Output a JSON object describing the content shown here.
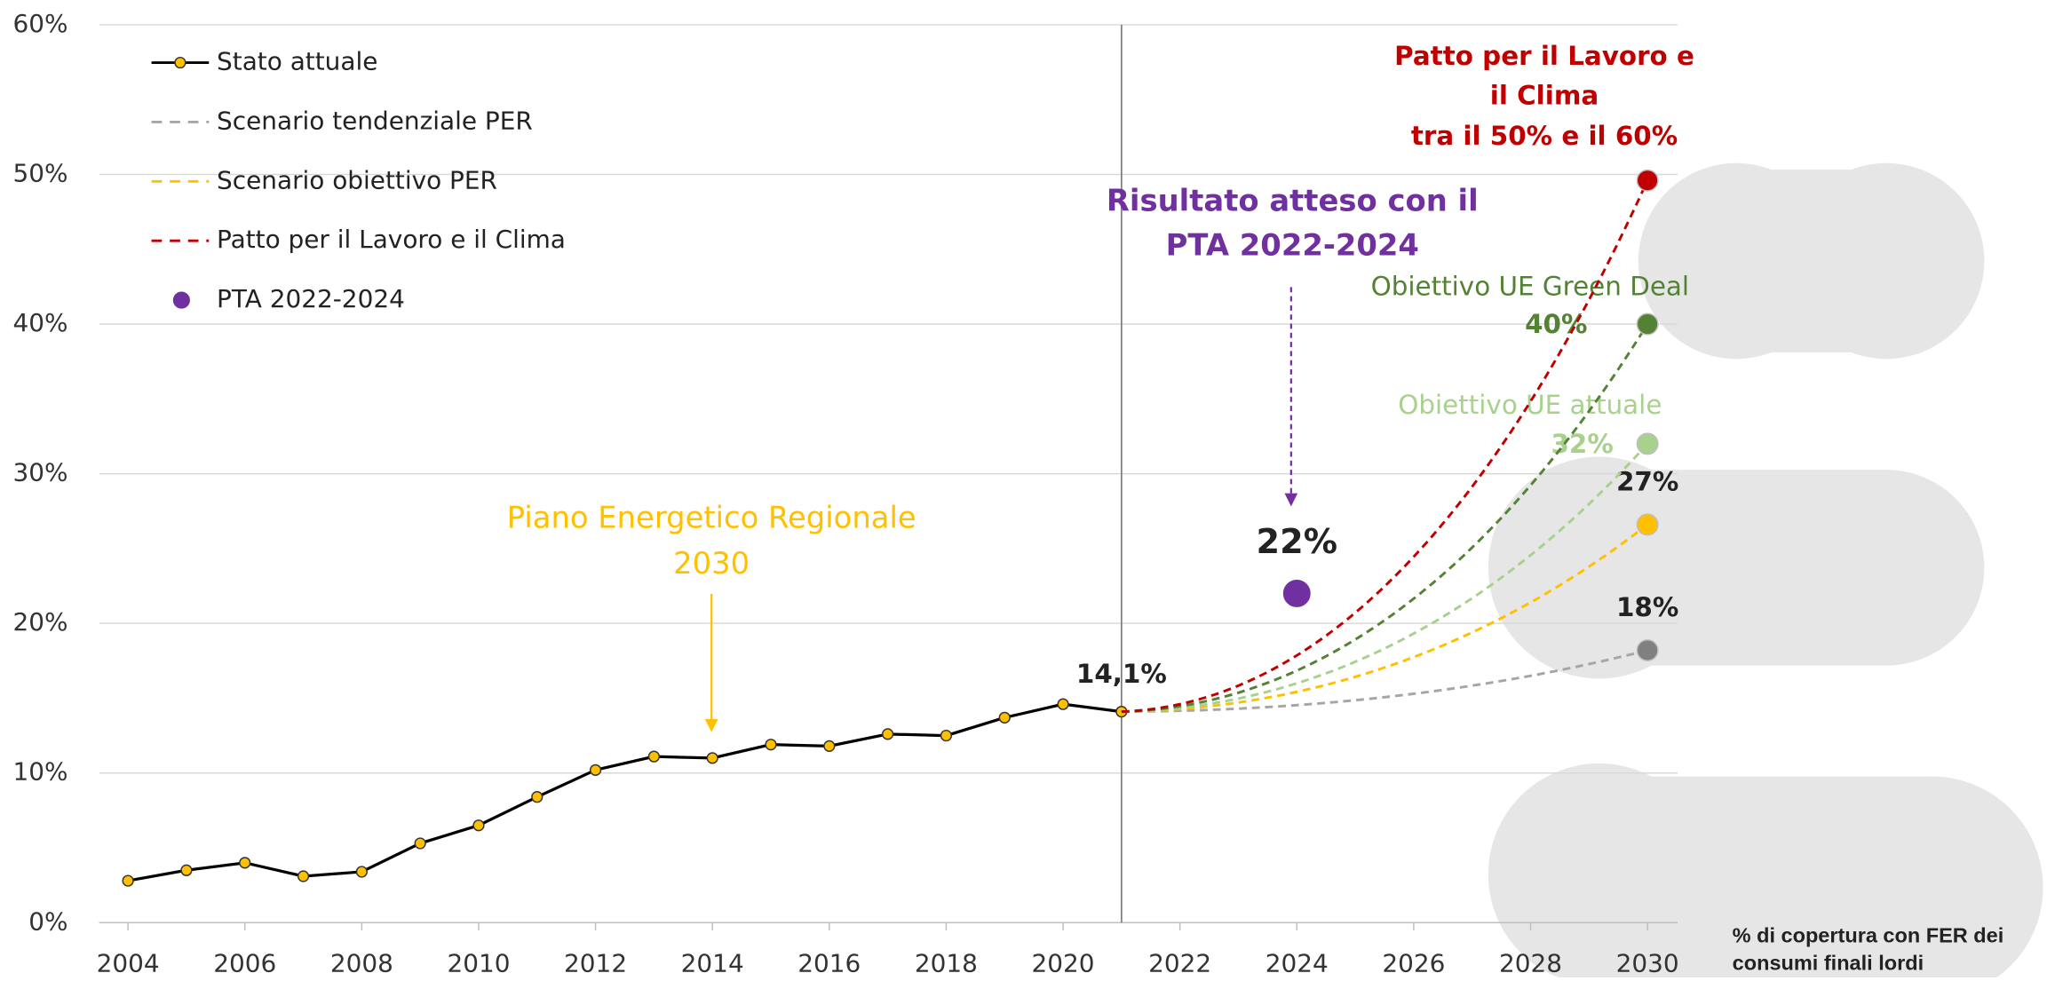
{
  "chart_data": {
    "type": "line",
    "xlim": [
      2003.5,
      2030.5
    ],
    "xticks": [
      2004,
      2006,
      2008,
      2010,
      2012,
      2014,
      2016,
      2018,
      2020,
      2022,
      2024,
      2026,
      2028,
      2030
    ],
    "ylim": [
      0,
      60
    ],
    "yticks": [
      {
        "value": 0,
        "label": "0%"
      },
      {
        "value": 10,
        "label": "10%"
      },
      {
        "value": 20,
        "label": "20%"
      },
      {
        "value": 30,
        "label": "30%"
      },
      {
        "value": 40,
        "label": "40%"
      },
      {
        "value": 50,
        "label": "50%"
      },
      {
        "value": 60,
        "label": "60%"
      }
    ],
    "grid": true,
    "reference_x": 2021,
    "series": [
      {
        "name": "Stato attuale",
        "color": "#000000",
        "marker_color": "#ffc000",
        "style": "solid",
        "in_legend": true,
        "x": [
          2004,
          2005,
          2006,
          2007,
          2008,
          2009,
          2010,
          2011,
          2012,
          2013,
          2014,
          2015,
          2016,
          2017,
          2018,
          2019,
          2020,
          2021
        ],
        "values": [
          2.8,
          3.5,
          4.0,
          3.1,
          3.4,
          5.3,
          6.5,
          8.4,
          10.2,
          11.1,
          11.0,
          11.9,
          11.8,
          12.6,
          12.5,
          13.7,
          14.6,
          14.1
        ],
        "value_labels": [
          null,
          null,
          null,
          null,
          null,
          null,
          null,
          null,
          null,
          null,
          null,
          null,
          null,
          null,
          null,
          null,
          null,
          "14,1%"
        ]
      },
      {
        "name": "Scenario tendenziale PER",
        "color": "#a6a6a6",
        "marker_color": "#808080",
        "style": "dashed",
        "in_legend": true,
        "x": [
          2021,
          2030
        ],
        "values": [
          14.1,
          18.2
        ],
        "value_labels": [
          null,
          "18%"
        ]
      },
      {
        "name": "Scenario obiettivo PER",
        "color": "#ffc000",
        "marker_color": "#ffc000",
        "style": "dashed",
        "in_legend": true,
        "x": [
          2021,
          2030
        ],
        "values": [
          14.1,
          26.6
        ],
        "value_labels": [
          null,
          "27%"
        ]
      },
      {
        "name": "Obiettivo UE attuale",
        "color": "#a9d18e",
        "marker_color": "#a9d18e",
        "style": "dashed",
        "in_legend": false,
        "x": [
          2021,
          2030
        ],
        "values": [
          14.1,
          32
        ],
        "value_labels": [
          null,
          "32%"
        ]
      },
      {
        "name": "Obiettivo UE Green Deal",
        "color": "#548235",
        "marker_color": "#548235",
        "style": "dashed",
        "in_legend": false,
        "x": [
          2021,
          2030
        ],
        "values": [
          14.1,
          40
        ],
        "value_labels": [
          null,
          "40%"
        ]
      },
      {
        "name": "Patto per il Lavoro e il Clima",
        "color": "#c00000",
        "marker_color": "#c00000",
        "style": "dashed",
        "in_legend": true,
        "x": [
          2021,
          2030
        ],
        "values": [
          14.1,
          49.6
        ]
      },
      {
        "name": "PTA 2022-2024",
        "type": "scatter",
        "color": "#7030a0",
        "in_legend": true,
        "x": [
          2024
        ],
        "values": [
          22
        ],
        "value_labels": [
          "22%"
        ]
      }
    ],
    "annotations": {
      "per": [
        "Piano Energetico Regionale",
        "2030"
      ],
      "pta": [
        "Risultato atteso con il",
        "PTA 2022-2024"
      ],
      "patto": [
        "Patto per il Lavoro e",
        "il Clima",
        "tra il 50% e il 60%"
      ]
    },
    "note": [
      "% di copertura con FER dei",
      "consumi finali lordi"
    ]
  }
}
